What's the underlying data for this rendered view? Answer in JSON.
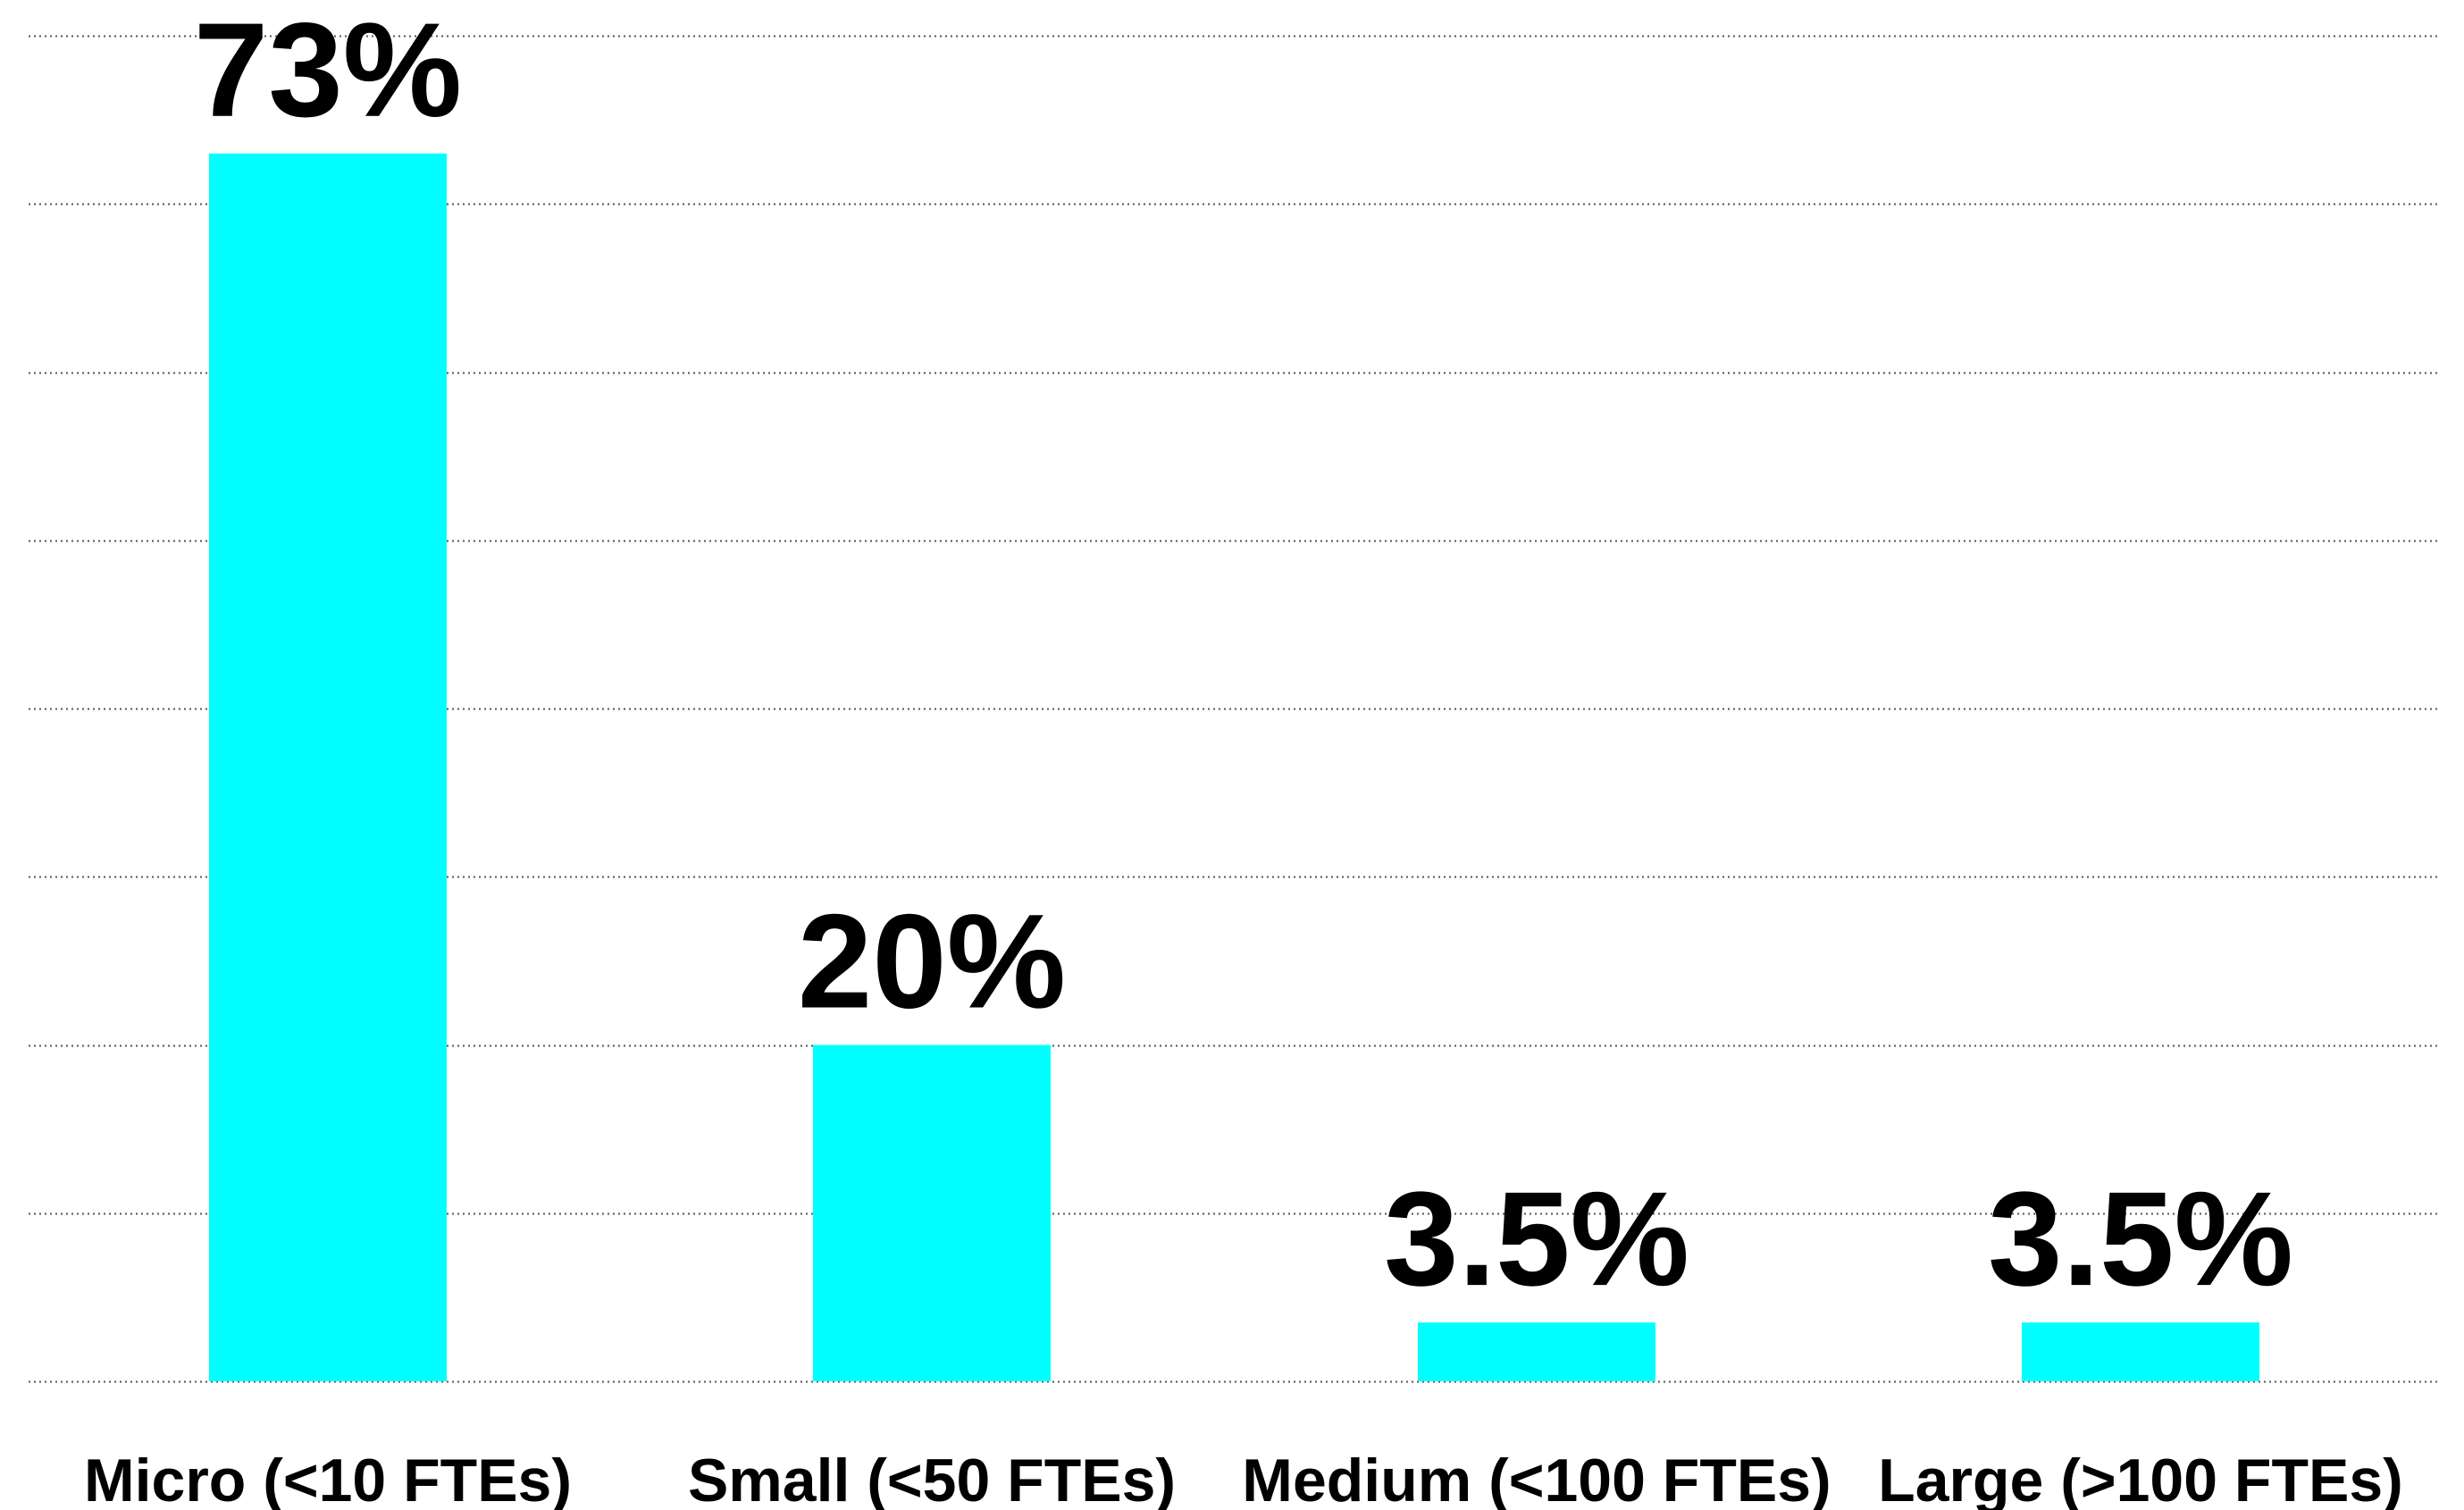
{
  "chart_data": {
    "type": "bar",
    "categories": [
      "Micro (<10 FTEs)",
      "Small (<50 FTEs)",
      "Medium (<100 FTEs)",
      "Large (>100 FTEs)"
    ],
    "values": [
      73,
      20,
      3.5,
      3.5
    ],
    "data_labels": [
      "73%",
      "20%",
      "3.5%",
      "3.5%"
    ],
    "ylim": [
      0,
      80
    ],
    "grid": true,
    "bar_color": "#00FFFF"
  }
}
